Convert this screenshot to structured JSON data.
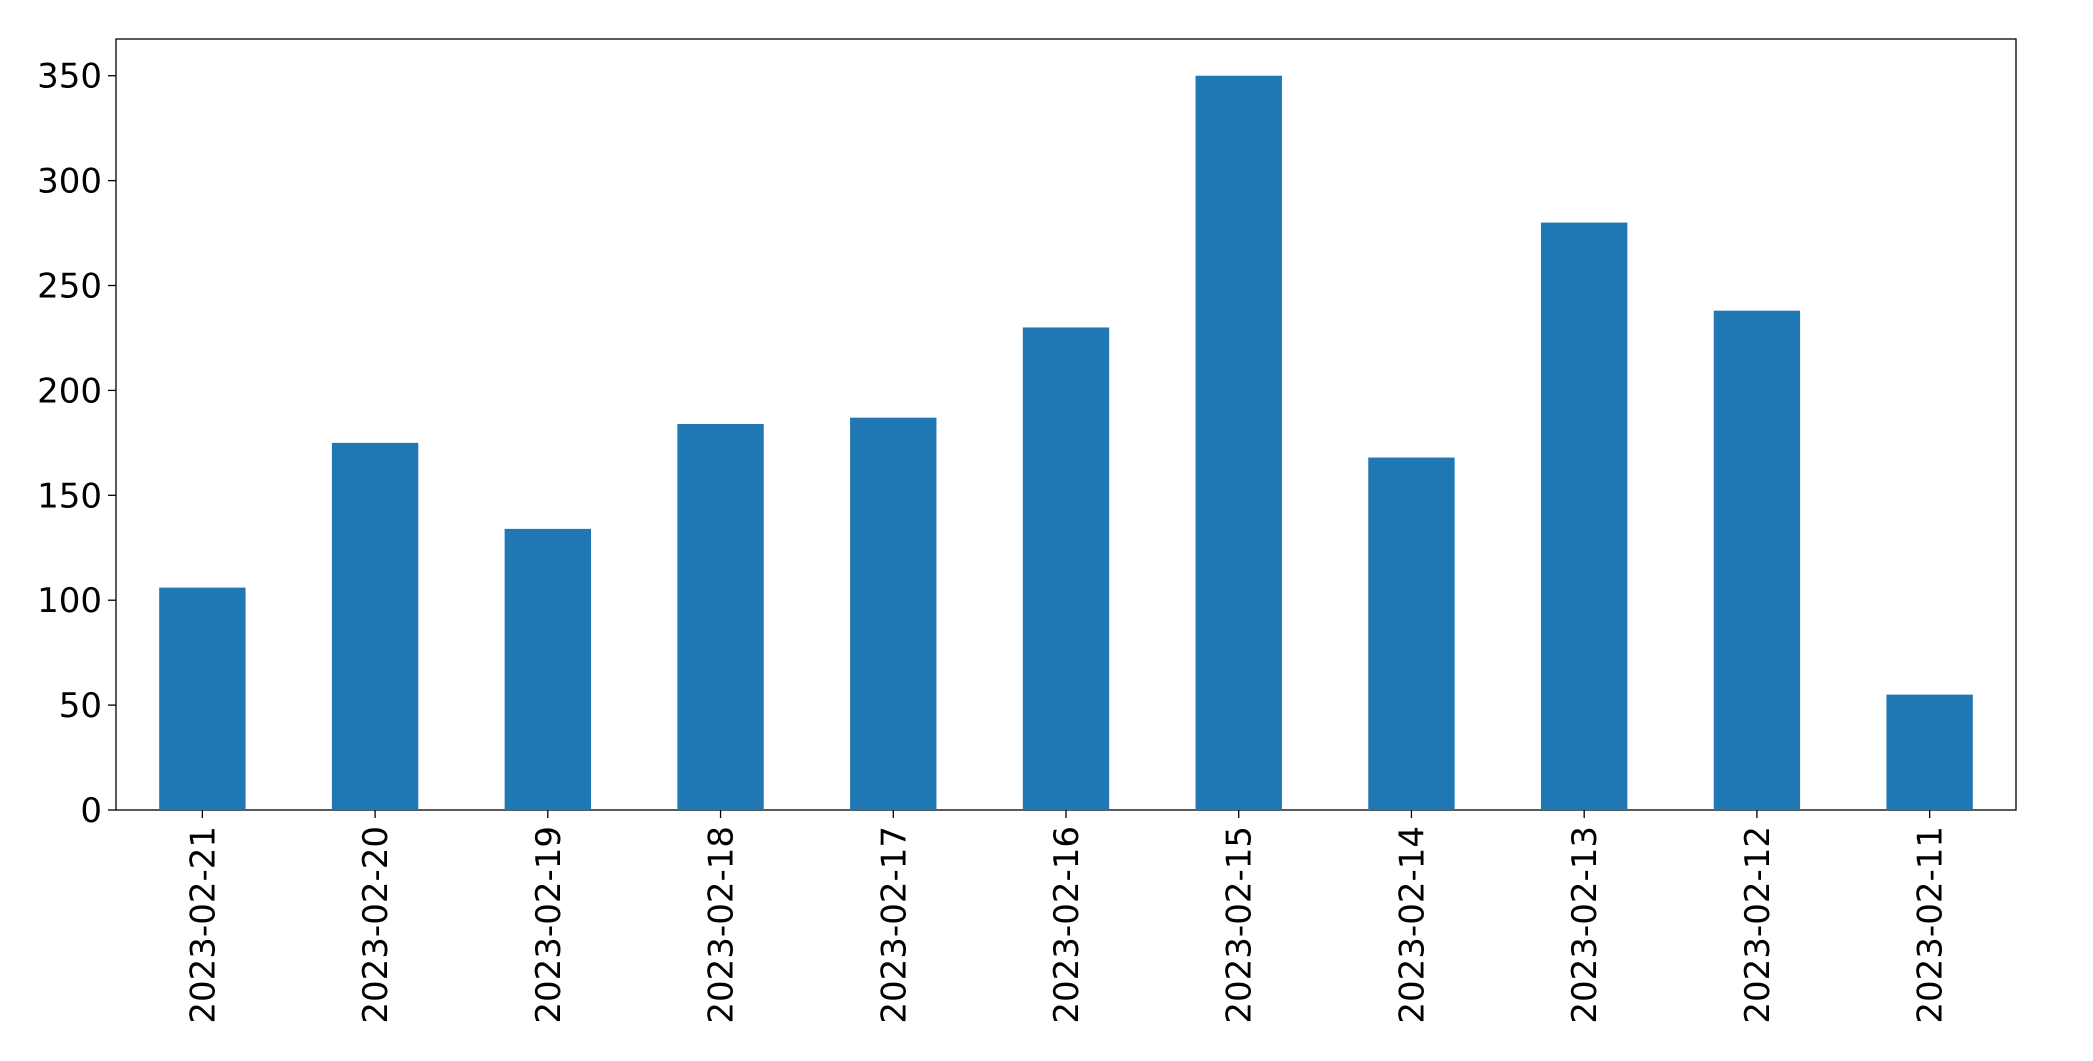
{
  "chart_data": {
    "type": "bar",
    "categories": [
      "2023-02-21",
      "2023-02-20",
      "2023-02-19",
      "2023-02-18",
      "2023-02-17",
      "2023-02-16",
      "2023-02-15",
      "2023-02-14",
      "2023-02-13",
      "2023-02-12",
      "2023-02-11"
    ],
    "values": [
      106,
      175,
      134,
      184,
      187,
      230,
      350,
      168,
      280,
      238,
      55
    ],
    "color": "#1f77b4",
    "ylim": [
      0,
      367.5
    ],
    "yticks": [
      0,
      50,
      100,
      150,
      200,
      250,
      300,
      350
    ],
    "grid": false
  }
}
